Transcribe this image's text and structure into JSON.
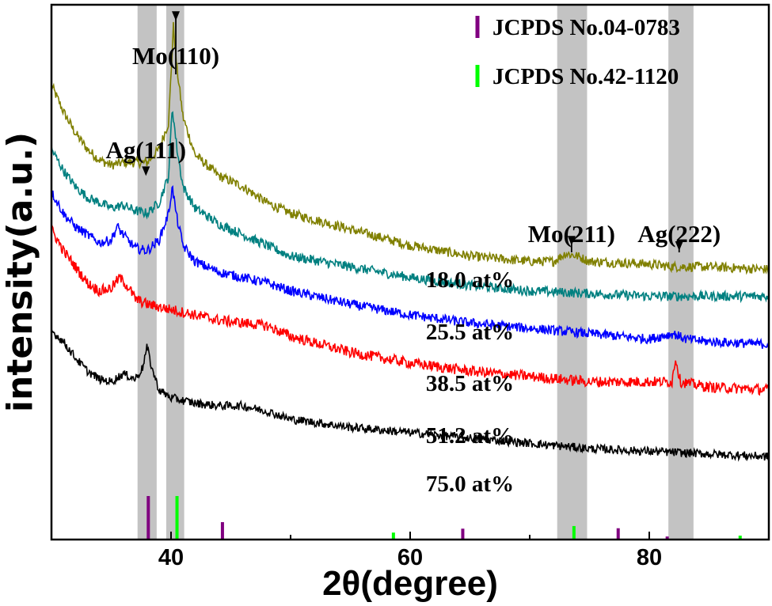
{
  "chart_data": {
    "type": "line",
    "title": "",
    "xlabel": "2θ(degree)",
    "ylabel": "intensity(a.u.)",
    "xlim": [
      30,
      90
    ],
    "ylim": [
      0,
      100
    ],
    "x_ticks": [
      40,
      60,
      80
    ],
    "x_tick_labels": [
      "40",
      "60",
      "80"
    ],
    "legend": {
      "placement": "top-right",
      "entries": [
        {
          "label": "JCPDS No.04-0783",
          "color": "#800080"
        },
        {
          "label": "JCPDS No.42-1120",
          "color": "#00ff00"
        }
      ]
    },
    "series": [
      {
        "name": "18.0 at%",
        "label": "18.0 at%",
        "color": "#808000",
        "noise": 0.9,
        "points": [
          [
            30,
            85
          ],
          [
            31,
            80
          ],
          [
            32,
            76
          ],
          [
            33,
            73
          ],
          [
            34,
            71
          ],
          [
            35,
            70
          ],
          [
            36,
            70.5
          ],
          [
            37,
            70.5
          ],
          [
            38,
            70.5
          ],
          [
            39,
            73
          ],
          [
            39.8,
            78
          ],
          [
            40.2,
            96
          ],
          [
            40.5,
            88
          ],
          [
            41,
            79
          ],
          [
            42,
            72
          ],
          [
            44,
            68
          ],
          [
            46,
            66
          ],
          [
            48,
            63
          ],
          [
            50,
            61
          ],
          [
            55,
            58
          ],
          [
            60,
            55
          ],
          [
            65,
            53
          ],
          [
            70,
            52
          ],
          [
            72,
            52
          ],
          [
            73,
            53.5
          ],
          [
            74,
            53
          ],
          [
            75,
            52
          ],
          [
            80,
            51.5
          ],
          [
            82,
            51
          ],
          [
            85,
            51
          ],
          [
            90,
            50.5
          ]
        ],
        "peaks": []
      },
      {
        "name": "25.5 at%",
        "label": "25.5 at%",
        "color": "#008080",
        "noise": 0.9,
        "points": [
          [
            30,
            73
          ],
          [
            31,
            69
          ],
          [
            32,
            66
          ],
          [
            33,
            64
          ],
          [
            34,
            63
          ],
          [
            35,
            62
          ],
          [
            36,
            62.5
          ],
          [
            37,
            61.5
          ],
          [
            38,
            61
          ],
          [
            39,
            63
          ],
          [
            39.8,
            68
          ],
          [
            40.1,
            81
          ],
          [
            40.5,
            73
          ],
          [
            41,
            66
          ],
          [
            42,
            62
          ],
          [
            44,
            59
          ],
          [
            46,
            57
          ],
          [
            48,
            55
          ],
          [
            50,
            53
          ],
          [
            55,
            51
          ],
          [
            60,
            49
          ],
          [
            65,
            47.5
          ],
          [
            70,
            46.5
          ],
          [
            75,
            46
          ],
          [
            80,
            45.5
          ],
          [
            85,
            45.5
          ],
          [
            90,
            45.5
          ]
        ],
        "peaks": []
      },
      {
        "name": "38.5 at%",
        "label": "38.5 at%",
        "color": "#0000ff",
        "noise": 0.9,
        "points": [
          [
            30,
            65
          ],
          [
            31,
            61
          ],
          [
            32,
            58.5
          ],
          [
            33,
            57
          ],
          [
            34,
            55.5
          ],
          [
            35,
            56
          ],
          [
            35.5,
            58.5
          ],
          [
            36,
            57
          ],
          [
            37,
            54.5
          ],
          [
            38,
            54
          ],
          [
            39,
            56
          ],
          [
            39.8,
            61
          ],
          [
            40.1,
            66
          ],
          [
            40.5,
            60
          ],
          [
            41,
            55
          ],
          [
            42,
            52
          ],
          [
            44,
            50
          ],
          [
            46,
            49
          ],
          [
            48,
            48
          ],
          [
            50,
            46.5
          ],
          [
            55,
            44
          ],
          [
            60,
            42
          ],
          [
            65,
            40.5
          ],
          [
            70,
            39.5
          ],
          [
            75,
            38.5
          ],
          [
            80,
            37.5
          ],
          [
            82,
            38.5
          ],
          [
            83,
            37.5
          ],
          [
            85,
            37
          ],
          [
            90,
            36.5
          ]
        ],
        "peaks": []
      },
      {
        "name": "51.2 at%",
        "label": "51.2 at%",
        "color": "#ff0000",
        "noise": 1.0,
        "points": [
          [
            30,
            58
          ],
          [
            31,
            54
          ],
          [
            32,
            51
          ],
          [
            33,
            48
          ],
          [
            34,
            46.5
          ],
          [
            35,
            47
          ],
          [
            35.7,
            49
          ],
          [
            36.5,
            47
          ],
          [
            37,
            45
          ],
          [
            38,
            44
          ],
          [
            39,
            43.5
          ],
          [
            40,
            43
          ],
          [
            42,
            42
          ],
          [
            44,
            41
          ],
          [
            46,
            40.5
          ],
          [
            48,
            40
          ],
          [
            50,
            38
          ],
          [
            55,
            35
          ],
          [
            60,
            33
          ],
          [
            65,
            31.5
          ],
          [
            70,
            30.5
          ],
          [
            75,
            29.5
          ],
          [
            80,
            29.5
          ],
          [
            81.9,
            29.5
          ],
          [
            82.2,
            34
          ],
          [
            82.6,
            29.5
          ],
          [
            85,
            28.5
          ],
          [
            90,
            28
          ]
        ],
        "peaks": []
      },
      {
        "name": "75.0 at%",
        "label": "75.0 at%",
        "color": "#000000",
        "noise": 0.8,
        "points": [
          [
            30,
            39
          ],
          [
            31,
            37
          ],
          [
            32,
            34
          ],
          [
            33,
            31.5
          ],
          [
            34,
            30
          ],
          [
            35,
            29.5
          ],
          [
            36,
            31
          ],
          [
            37,
            30
          ],
          [
            37.6,
            32
          ],
          [
            38,
            36
          ],
          [
            38.4,
            32
          ],
          [
            39,
            28
          ],
          [
            40,
            26.5
          ],
          [
            42,
            25.5
          ],
          [
            44,
            25
          ],
          [
            46,
            25
          ],
          [
            48,
            24
          ],
          [
            50,
            22.5
          ],
          [
            55,
            21
          ],
          [
            60,
            20
          ],
          [
            65,
            19
          ],
          [
            70,
            18
          ],
          [
            75,
            17
          ],
          [
            80,
            16.5
          ],
          [
            85,
            16
          ],
          [
            90,
            15.5
          ]
        ],
        "peaks": []
      }
    ],
    "reference_lines": [
      {
        "set": "JCPDS No.04-0783",
        "color": "#800080",
        "positions": [
          38.1,
          44.3,
          64.4,
          77.4,
          81.5
        ],
        "heights": [
          100,
          40,
          25,
          26,
          7
        ]
      },
      {
        "set": "JCPDS No.42-1120",
        "color": "#00ff00",
        "positions": [
          40.5,
          58.6,
          73.7,
          87.6
        ],
        "heights": [
          100,
          16,
          31,
          9
        ]
      }
    ],
    "highlight_bands": [
      {
        "from": 37.2,
        "to": 38.8
      },
      {
        "from": 39.6,
        "to": 41.1
      },
      {
        "from": 72.3,
        "to": 74.8
      },
      {
        "from": 81.6,
        "to": 83.7
      }
    ],
    "annotations": [
      {
        "text": "Ag(111)",
        "x": 37.9,
        "arrow_to": 68
      },
      {
        "text": "Mo(110)",
        "x": 40.4,
        "arrow_to": 97
      },
      {
        "text": "Mo(211)",
        "x": 73.5,
        "arrow_to": 55
      },
      {
        "text": "Ag(222)",
        "x": 82.5,
        "arrow_to": 54
      }
    ],
    "series_label_x": 65
  }
}
